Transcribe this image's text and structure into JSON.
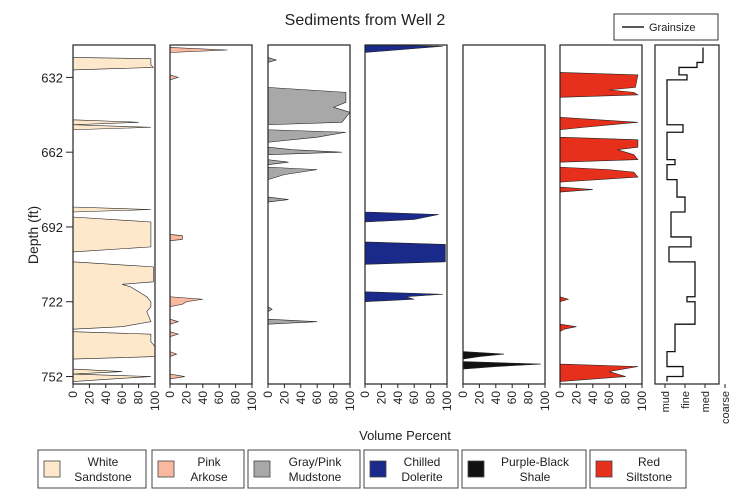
{
  "chart_data": {
    "type": "area",
    "title": "Sediments from Well 2",
    "ylabel": "Depth (ft)",
    "xlabel": "Volume Percent",
    "depth_range": [
      619,
      755
    ],
    "depth_ticks": [
      632,
      662,
      692,
      722,
      752
    ],
    "percent_ticks": [
      0,
      20,
      40,
      60,
      80,
      100
    ],
    "legend_label": "Grainsize",
    "grain_ticks": [
      "mud",
      "fine",
      "med",
      "coarse"
    ],
    "panels": [
      {
        "name": "White Sandstone",
        "line1": "White",
        "line2": "Sandstone",
        "color": "#fde8cc",
        "values": [
          [
            622,
            0
          ],
          [
            624,
            0
          ],
          [
            624.5,
            95
          ],
          [
            627,
            95
          ],
          [
            628,
            98
          ],
          [
            629,
            0
          ],
          [
            631,
            0
          ],
          [
            649,
            0
          ],
          [
            650,
            80
          ],
          [
            651,
            0
          ],
          [
            652,
            95
          ],
          [
            653,
            0
          ],
          [
            684,
            0
          ],
          [
            685,
            95
          ],
          [
            686,
            0
          ],
          [
            688,
            0
          ],
          [
            690,
            95
          ],
          [
            700,
            95
          ],
          [
            702,
            0
          ],
          [
            706,
            0
          ],
          [
            708,
            98
          ],
          [
            714,
            98
          ],
          [
            715,
            60
          ],
          [
            716,
            70
          ],
          [
            718,
            80
          ],
          [
            720,
            90
          ],
          [
            722,
            95
          ],
          [
            724,
            95
          ],
          [
            726,
            90
          ],
          [
            730,
            95
          ],
          [
            732,
            60
          ],
          [
            733,
            0
          ],
          [
            734,
            0
          ],
          [
            735,
            95
          ],
          [
            738,
            95
          ],
          [
            740,
            100
          ],
          [
            744,
            100
          ],
          [
            745,
            0
          ],
          [
            749,
            0
          ],
          [
            750,
            60
          ],
          [
            751,
            0
          ],
          [
            752,
            95
          ],
          [
            754,
            0
          ]
        ]
      },
      {
        "name": "Pink Arkose",
        "line1": "Pink",
        "line2": "Arkose",
        "color": "#f9b8a0",
        "values": [
          [
            620,
            0
          ],
          [
            621,
            70
          ],
          [
            622,
            0
          ],
          [
            631,
            0
          ],
          [
            632,
            10
          ],
          [
            633,
            0
          ],
          [
            695,
            0
          ],
          [
            695.5,
            15
          ],
          [
            697,
            15
          ],
          [
            697.5,
            0
          ],
          [
            720,
            0
          ],
          [
            721,
            40
          ],
          [
            722,
            20
          ],
          [
            723,
            15
          ],
          [
            724,
            0
          ],
          [
            729,
            0
          ],
          [
            730,
            10
          ],
          [
            731,
            0
          ],
          [
            734,
            0
          ],
          [
            735,
            10
          ],
          [
            736,
            0
          ],
          [
            742,
            0
          ],
          [
            743,
            8
          ],
          [
            744,
            0
          ],
          [
            751,
            0
          ],
          [
            752,
            18
          ],
          [
            753,
            0
          ]
        ]
      },
      {
        "name": "Gray/Pink Mudstone",
        "line1": "Gray/Pink",
        "line2": "Mudstone",
        "color": "#a8a8a8",
        "values": [
          [
            624,
            0
          ],
          [
            625,
            10
          ],
          [
            626,
            0
          ],
          [
            636,
            0
          ],
          [
            638,
            95
          ],
          [
            642,
            95
          ],
          [
            644,
            80
          ],
          [
            646,
            100
          ],
          [
            648,
            95
          ],
          [
            650,
            90
          ],
          [
            651,
            0
          ],
          [
            653,
            0
          ],
          [
            654,
            95
          ],
          [
            656,
            60
          ],
          [
            658,
            0
          ],
          [
            660,
            0
          ],
          [
            661,
            30
          ],
          [
            662,
            90
          ],
          [
            663,
            0
          ],
          [
            665,
            0
          ],
          [
            666,
            25
          ],
          [
            667,
            0
          ],
          [
            668,
            0
          ],
          [
            669,
            60
          ],
          [
            670,
            40
          ],
          [
            671,
            20
          ],
          [
            672,
            10
          ],
          [
            673,
            0
          ],
          [
            680,
            0
          ],
          [
            681,
            25
          ],
          [
            682,
            0
          ],
          [
            724,
            0
          ],
          [
            725,
            5
          ],
          [
            726,
            0
          ],
          [
            729,
            0
          ],
          [
            730,
            60
          ],
          [
            731,
            0
          ]
        ]
      },
      {
        "name": "Chilled Dolerite",
        "line1": "Chilled",
        "line2": "Dolerite",
        "color": "#1a2a8a",
        "values": [
          [
            619,
            0
          ],
          [
            619.5,
            95
          ],
          [
            622,
            0
          ],
          [
            686,
            0
          ],
          [
            687,
            90
          ],
          [
            689,
            60
          ],
          [
            690,
            0
          ],
          [
            698,
            0
          ],
          [
            699,
            98
          ],
          [
            706,
            98
          ],
          [
            707,
            0
          ],
          [
            718,
            0
          ],
          [
            719,
            95
          ],
          [
            720,
            50
          ],
          [
            721,
            60
          ],
          [
            722,
            0
          ]
        ]
      },
      {
        "name": "Purple-Black Shale",
        "line1": "Purple-Black",
        "line2": "Shale",
        "color": "#111111",
        "values": [
          [
            742,
            0
          ],
          [
            743,
            50
          ],
          [
            744,
            20
          ],
          [
            745,
            0
          ],
          [
            746,
            0
          ],
          [
            747,
            95
          ],
          [
            748,
            40
          ],
          [
            749,
            0
          ]
        ]
      },
      {
        "name": "Red Siltstone",
        "line1": "Red",
        "line2": "Siltstone",
        "color": "#e6301c",
        "values": [
          [
            630,
            0
          ],
          [
            631,
            95
          ],
          [
            636,
            92
          ],
          [
            637,
            60
          ],
          [
            638,
            90
          ],
          [
            639,
            95
          ],
          [
            640,
            0
          ],
          [
            648,
            0
          ],
          [
            650,
            95
          ],
          [
            652,
            30
          ],
          [
            653,
            0
          ],
          [
            656,
            0
          ],
          [
            657,
            95
          ],
          [
            660,
            95
          ],
          [
            661,
            70
          ],
          [
            663,
            90
          ],
          [
            665,
            95
          ],
          [
            666,
            0
          ],
          [
            668,
            0
          ],
          [
            669,
            60
          ],
          [
            670,
            90
          ],
          [
            672,
            95
          ],
          [
            674,
            0
          ],
          [
            676,
            0
          ],
          [
            677,
            40
          ],
          [
            678,
            0
          ],
          [
            720,
            0
          ],
          [
            721,
            10
          ],
          [
            722,
            0
          ],
          [
            731,
            0
          ],
          [
            732,
            20
          ],
          [
            733,
            5
          ],
          [
            734,
            0
          ],
          [
            747,
            0
          ],
          [
            748,
            95
          ],
          [
            750,
            60
          ],
          [
            752,
            80
          ],
          [
            754,
            0
          ]
        ]
      }
    ],
    "grainsize": [
      [
        620,
        2.9
      ],
      [
        626,
        2.9
      ],
      [
        626,
        2.6
      ],
      [
        628,
        2.6
      ],
      [
        628,
        1.7
      ],
      [
        631,
        1.7
      ],
      [
        631,
        2.1
      ],
      [
        633,
        2.1
      ],
      [
        633,
        1.1
      ],
      [
        651,
        1.1
      ],
      [
        651,
        1.9
      ],
      [
        654,
        1.9
      ],
      [
        654,
        1.1
      ],
      [
        665,
        1.1
      ],
      [
        665,
        1.5
      ],
      [
        667,
        1.5
      ],
      [
        667,
        1.1
      ],
      [
        673,
        1.1
      ],
      [
        673,
        1.6
      ],
      [
        680,
        1.6
      ],
      [
        680,
        2.0
      ],
      [
        686,
        2.0
      ],
      [
        686,
        1.3
      ],
      [
        696,
        1.3
      ],
      [
        696,
        2.3
      ],
      [
        700,
        2.3
      ],
      [
        700,
        1.2
      ],
      [
        706,
        1.2
      ],
      [
        706,
        2.5
      ],
      [
        720,
        2.5
      ],
      [
        720,
        2.1
      ],
      [
        722,
        2.1
      ],
      [
        722,
        2.5
      ],
      [
        731,
        2.5
      ],
      [
        731,
        1.5
      ],
      [
        742,
        1.5
      ],
      [
        742,
        1.1
      ],
      [
        748,
        1.1
      ],
      [
        748,
        1.9
      ],
      [
        752,
        1.9
      ],
      [
        752,
        1.1
      ],
      [
        754,
        1.1
      ]
    ]
  }
}
